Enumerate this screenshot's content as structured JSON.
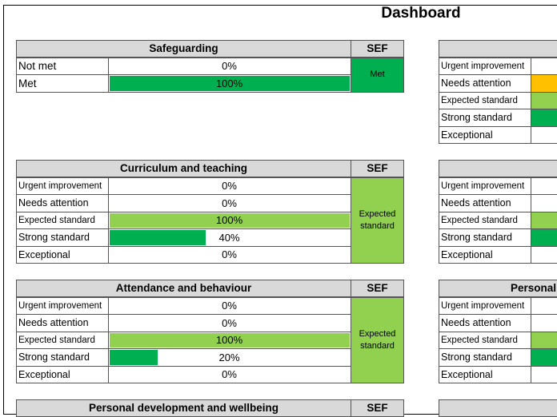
{
  "title": "Dashboard",
  "panels": [
    {
      "title": "Safeguarding",
      "sef_header": "SEF",
      "sef": "Met",
      "sef_color": "#00b050",
      "rows": [
        {
          "label": "Not met",
          "value": 0,
          "value_label": "0%"
        },
        {
          "label": "Met",
          "value": 100,
          "value_label": "100%",
          "color": "#00b050"
        }
      ]
    },
    {
      "title": "Curriculum and teaching",
      "sef_header": "SEF",
      "sef": "Expected standard",
      "sef_color": "#92d050",
      "rows": [
        {
          "label": "Urgent improvement",
          "value": 0,
          "value_label": "0%"
        },
        {
          "label": "Needs attention",
          "value": 0,
          "value_label": "0%"
        },
        {
          "label": "Expected standard",
          "value": 100,
          "value_label": "100%",
          "color": "#92d050"
        },
        {
          "label": "Strong standard",
          "value": 40,
          "value_label": "40%",
          "color": "#00b050"
        },
        {
          "label": "Exceptional",
          "value": 0,
          "value_label": "0%"
        }
      ]
    },
    {
      "title": "Attendance and behaviour",
      "sef_header": "SEF",
      "sef": "Expected standard",
      "sef_color": "#92d050",
      "rows": [
        {
          "label": "Urgent improvement",
          "value": 0,
          "value_label": "0%"
        },
        {
          "label": "Needs attention",
          "value": 0,
          "value_label": "0%"
        },
        {
          "label": "Expected standard",
          "value": 100,
          "value_label": "100%",
          "color": "#92d050"
        },
        {
          "label": "Strong standard",
          "value": 20,
          "value_label": "20%",
          "color": "#00b050"
        },
        {
          "label": "Exceptional",
          "value": 0,
          "value_label": "0%"
        }
      ]
    },
    {
      "title": "Personal development and wellbeing",
      "sef_header": "SEF",
      "rows": []
    }
  ],
  "right_panels": [
    {
      "rows": [
        {
          "label": "Urgent improvement"
        },
        {
          "label": "Needs attention",
          "color": "#ffc000"
        },
        {
          "label": "Expected standard",
          "color": "#92d050"
        },
        {
          "label": "Strong standard",
          "color": "#00b050"
        },
        {
          "label": "Exceptional"
        }
      ]
    },
    {
      "rows": [
        {
          "label": "Urgent improvement"
        },
        {
          "label": "Needs attention"
        },
        {
          "label": "Expected standard",
          "color": "#92d050"
        },
        {
          "label": "Strong standard",
          "color": "#00b050"
        },
        {
          "label": "Exceptional"
        }
      ]
    },
    {
      "title": "Personal",
      "rows": [
        {
          "label": "Urgent improvement"
        },
        {
          "label": "Needs attention"
        },
        {
          "label": "Expected standard",
          "color": "#92d050"
        },
        {
          "label": "Strong standard",
          "color": "#00b050"
        },
        {
          "label": "Exceptional"
        }
      ]
    },
    {
      "rows": []
    }
  ]
}
